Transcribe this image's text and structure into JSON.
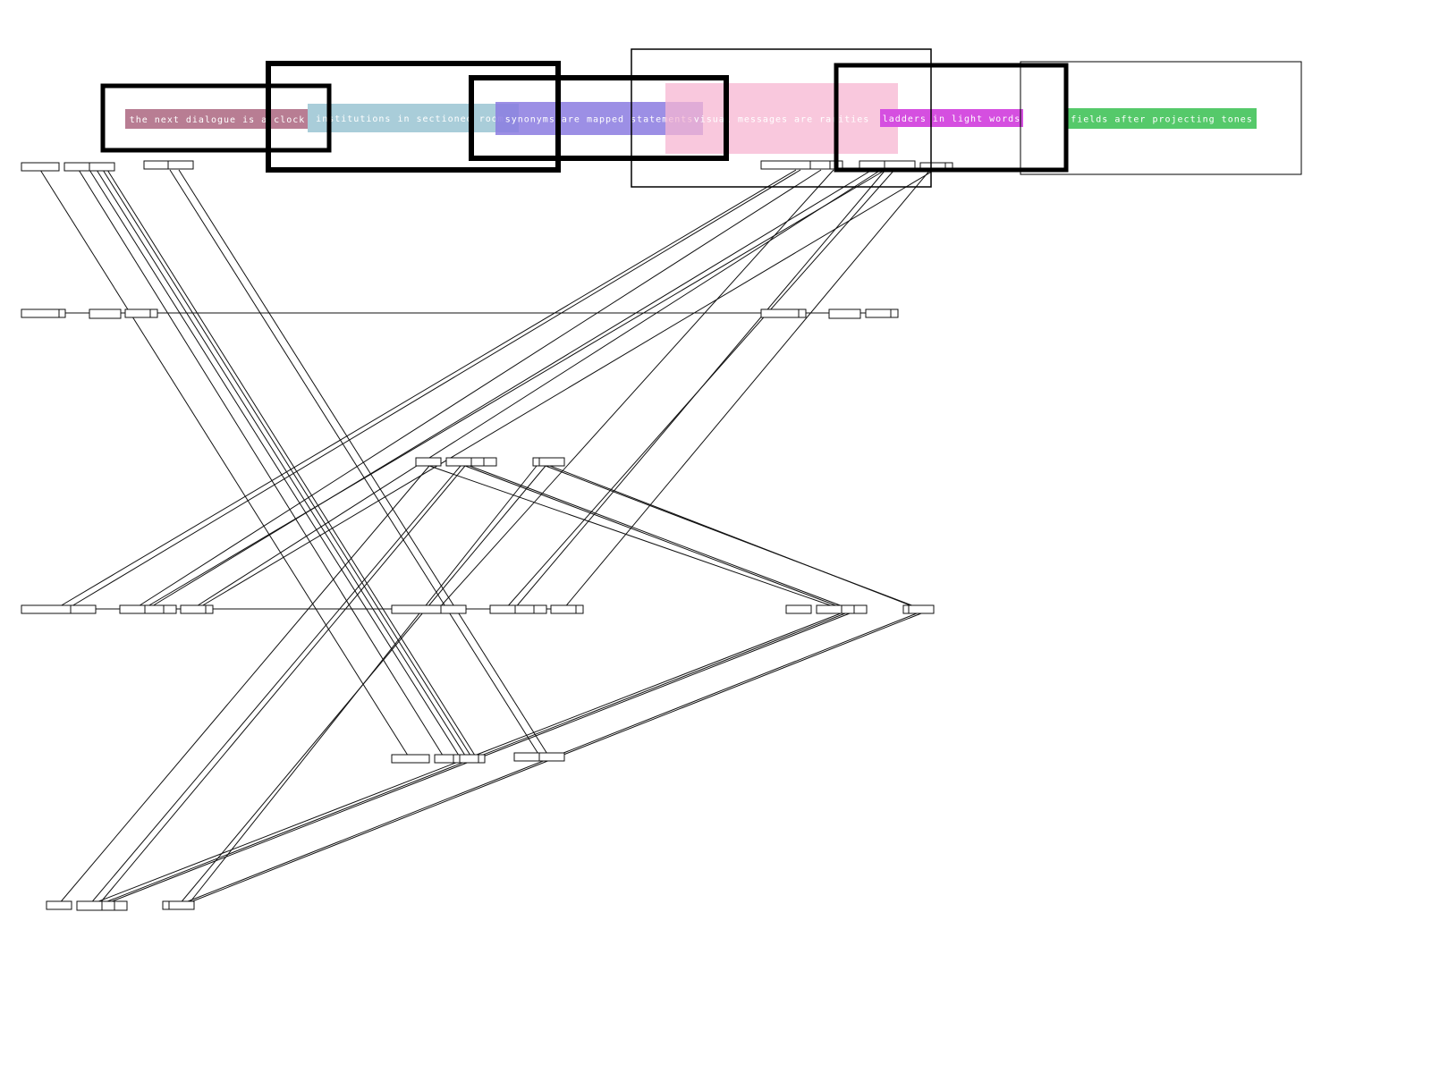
{
  "labels": [
    {
      "text": "the next dialogue is a clock",
      "color": "#b87d93"
    },
    {
      "text": "institutions in sectioned rooms",
      "color": "#a9cdd9"
    },
    {
      "text": "synonyms are mapped statements",
      "color": "#8b7be0"
    },
    {
      "text": "visual messages are rarities",
      "color": "#f7b6d2"
    },
    {
      "text": "ladders in light words",
      "color": "#d54fe0"
    },
    {
      "text": "fields after projecting tones",
      "color": "#55c96a"
    }
  ]
}
